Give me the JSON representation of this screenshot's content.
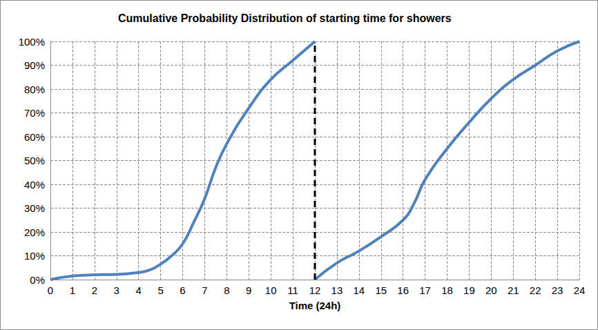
{
  "chart_data": {
    "type": "line",
    "title": "Cumulative Probability Distribution of starting time for showers",
    "x_label": "Time (24h)",
    "xlim": [
      0,
      24
    ],
    "xticks": [
      0,
      1,
      2,
      3,
      4,
      5,
      6,
      7,
      8,
      9,
      10,
      11,
      12,
      13,
      14,
      15,
      16,
      17,
      18,
      19,
      20,
      21,
      22,
      23,
      24
    ],
    "ylim": [
      0,
      100
    ],
    "yticks": [
      {
        "value": 0,
        "label": "0%"
      },
      {
        "value": 10,
        "label": "10%"
      },
      {
        "value": 20,
        "label": "20%"
      },
      {
        "value": 30,
        "label": "30%"
      },
      {
        "value": 40,
        "label": "40%"
      },
      {
        "value": 50,
        "label": "50%"
      },
      {
        "value": 60,
        "label": "60%"
      },
      {
        "value": 70,
        "label": "70%"
      },
      {
        "value": 80,
        "label": "80%"
      },
      {
        "value": 90,
        "label": "90%"
      },
      {
        "value": 100,
        "label": "100%"
      }
    ],
    "grid": true,
    "series": [
      {
        "color": "#4f81bd",
        "line_style": "solid",
        "x": [
          0,
          1,
          2,
          3,
          4,
          4.5,
          5,
          5.5,
          6,
          6.5,
          7,
          7.5,
          8,
          9,
          10,
          11,
          12
        ],
        "values": [
          0,
          1.5,
          2,
          2.2,
          3,
          4,
          6.5,
          10,
          15,
          24,
          34,
          47,
          57,
          72,
          84,
          92,
          100
        ]
      },
      {
        "color": "#4f81bd",
        "line_style": "solid",
        "x": [
          12,
          13,
          14,
          15,
          16,
          16.5,
          17,
          18,
          19,
          20,
          21,
          22,
          23,
          24
        ],
        "values": [
          0,
          7,
          12,
          18,
          25,
          32,
          42,
          55,
          66,
          76,
          84,
          90,
          96,
          100
        ]
      },
      {
        "color": "#000000",
        "line_style": "dashed",
        "x": [
          12,
          12
        ],
        "values": [
          0,
          100
        ]
      }
    ]
  }
}
